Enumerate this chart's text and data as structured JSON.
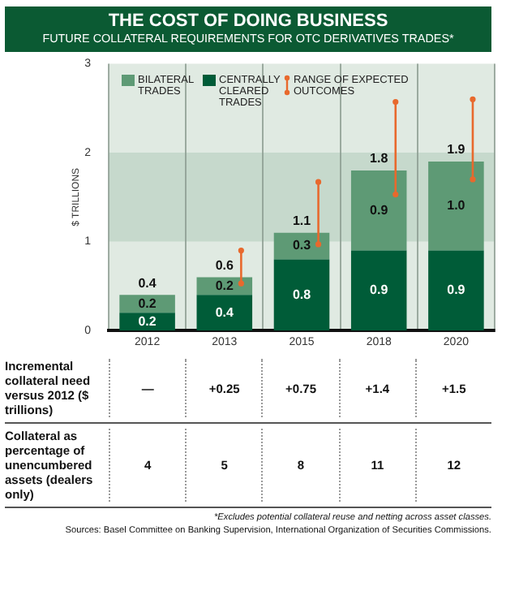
{
  "chart_data": {
    "type": "bar",
    "title": "THE COST OF DOING BUSINESS",
    "subtitle": "FUTURE COLLATERAL REQUIREMENTS FOR OTC DERIVATIVES TRADES*",
    "ylabel": "$ TRILLIONS",
    "categories": [
      "2012",
      "2013",
      "2015",
      "2018",
      "2020"
    ],
    "series": [
      {
        "name": "CENTRALLY CLEARED TRADES",
        "color": "#005c38",
        "values": [
          0.2,
          0.4,
          0.8,
          0.9,
          0.9
        ],
        "value_labels": [
          "0.2",
          "0.4",
          "0.8",
          "0.9",
          "0.9"
        ]
      },
      {
        "name": "BILATERAL TRADES",
        "color": "#5e9a75",
        "values": [
          0.2,
          0.2,
          0.3,
          0.9,
          1.0
        ],
        "value_labels": [
          "0.2",
          "0.2",
          "0.3",
          "0.9",
          "1.0"
        ],
        "errors": [
          null,
          [
            0.53,
            0.9
          ],
          [
            0.97,
            1.67
          ],
          [
            1.53,
            2.57
          ],
          [
            1.7,
            2.6
          ]
        ]
      }
    ],
    "stacked": true,
    "totals": [
      "0.4",
      "0.6",
      "1.1",
      "1.8",
      "1.9"
    ],
    "ylim": [
      0,
      3
    ],
    "yticks": [
      0,
      1,
      2,
      3
    ],
    "grid": "x",
    "legend": "top left",
    "bands": [
      {
        "axis": "y",
        "from": 1,
        "to": 2,
        "color": "#c6d9cc"
      }
    ],
    "annotations": [
      "RANGE OF EXPECTED OUTCOMES",
      "Incremental collateral need versus 2012 ($ trillions)",
      "—",
      "+0.25",
      "+0.75",
      "+1.4",
      "+1.5",
      "Collateral as percentage of unencumbered assets (dealers only)",
      "4",
      "5",
      "8",
      "11",
      "12",
      "*Excludes potential collateral reuse and netting across asset classes.",
      "Sources: Basel Committee on Banking Supervision, International Organization of Securities Commissions."
    ]
  }
}
